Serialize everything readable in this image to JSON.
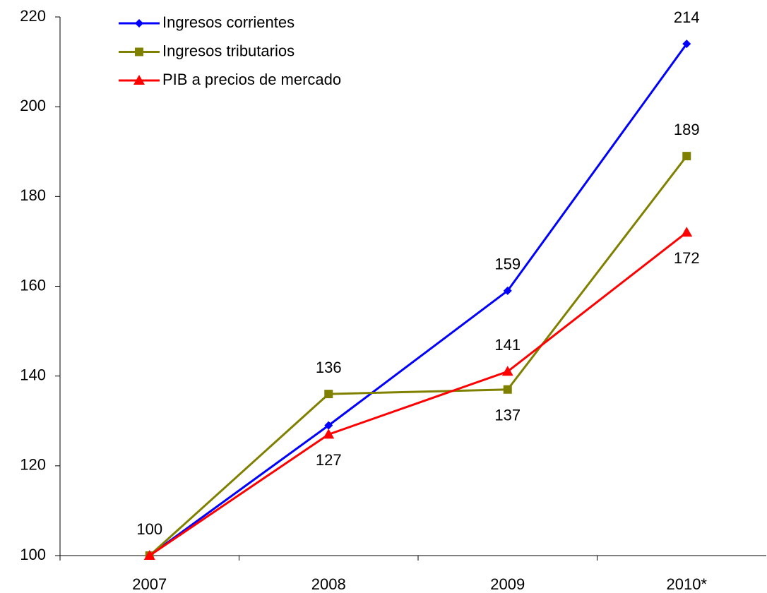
{
  "chart_data": {
    "type": "line",
    "categories": [
      "2007",
      "2008",
      "2009",
      "2010*"
    ],
    "series": [
      {
        "name": "Ingresos corrientes",
        "color": "#0000ff",
        "marker": "diamond",
        "values": [
          100,
          129,
          159,
          214
        ],
        "value_labels": [
          null,
          null,
          "159",
          "214"
        ]
      },
      {
        "name": "Ingresos tributarios",
        "color": "#808000",
        "marker": "square",
        "values": [
          100,
          136,
          137,
          189
        ],
        "value_labels": [
          "100",
          "136",
          "137",
          "189"
        ]
      },
      {
        "name": "PIB a precios de mercado",
        "color": "#ff0000",
        "marker": "triangle",
        "values": [
          100,
          127,
          141,
          172
        ],
        "value_labels": [
          null,
          "127",
          "141",
          "172"
        ]
      }
    ],
    "ylim": [
      100,
      220
    ],
    "yticks": [
      100,
      120,
      140,
      160,
      180,
      200,
      220
    ],
    "grid": false,
    "legend": "upper left"
  }
}
